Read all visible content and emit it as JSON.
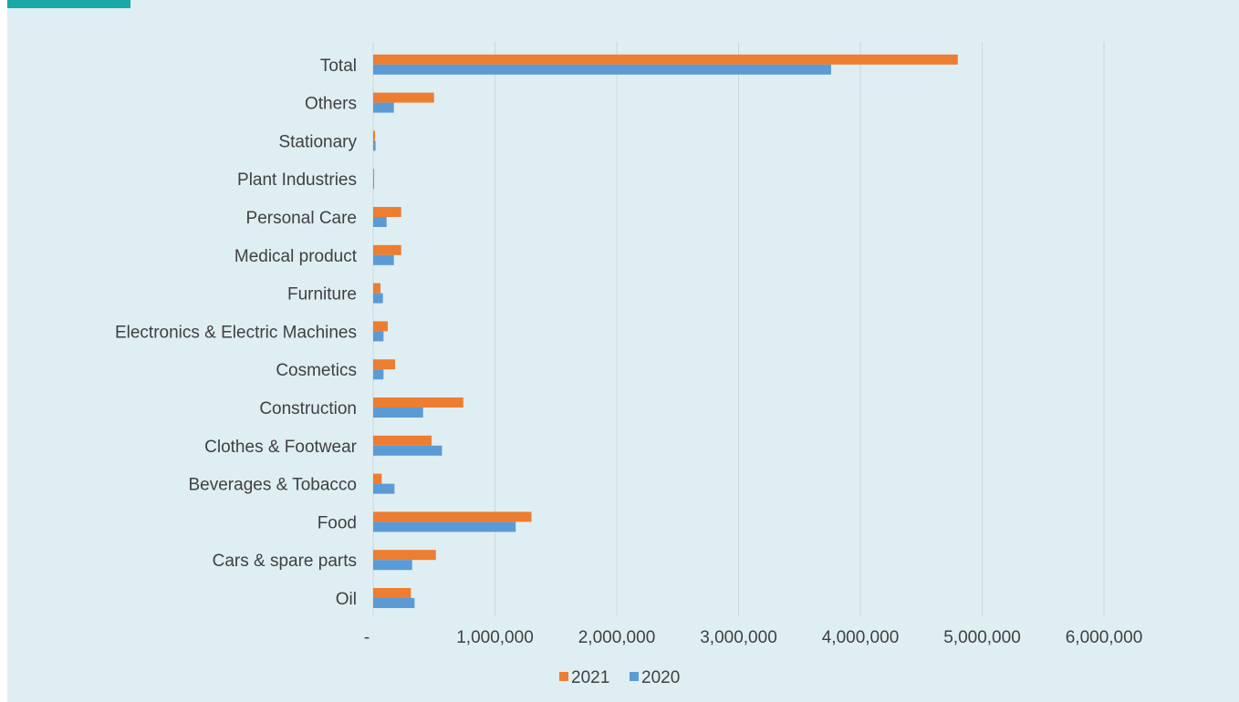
{
  "chart_data": {
    "type": "bar",
    "orientation": "horizontal",
    "title": "",
    "xlabel": "",
    "ylabel": "",
    "categories": [
      "Oil",
      "Cars & spare parts",
      "Food",
      "Beverages & Tobacco",
      "Clothes & Footwear",
      "Construction",
      "Cosmetics",
      "Electronics & Electric Machines",
      "Furniture",
      "Medical product",
      "Personal Care",
      "Plant Industries",
      "Stationary",
      "Others",
      "Total"
    ],
    "series": [
      {
        "name": "2021",
        "color": "#ed7d31",
        "values": [
          310000,
          515000,
          1300000,
          70000,
          480000,
          740000,
          180000,
          120000,
          60000,
          230000,
          230000,
          8000,
          15000,
          500000,
          4800000
        ]
      },
      {
        "name": "2020",
        "color": "#5b9bd5",
        "values": [
          340000,
          320000,
          1170000,
          175000,
          565000,
          410000,
          85000,
          85000,
          80000,
          170000,
          110000,
          4000,
          20000,
          170000,
          3760000
        ]
      }
    ],
    "xlim": [
      0,
      6000000
    ],
    "x_ticks": [
      "-",
      "1,000,000",
      "2,000,000",
      "3,000,000",
      "4,000,000",
      "5,000,000",
      "6,000,000"
    ],
    "x_tick_values": [
      0,
      1000000,
      2000000,
      3000000,
      4000000,
      5000000,
      6000000
    ],
    "grid": true,
    "legend_position": "bottom"
  }
}
